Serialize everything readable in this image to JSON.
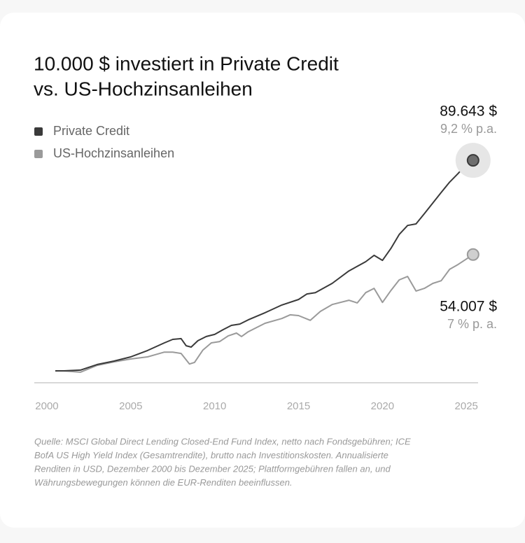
{
  "chart_data": {
    "type": "line",
    "title": [
      "10.000 $ investiert in Private Credit",
      "vs. US-Hochzinsanleihen"
    ],
    "series": [
      {
        "name": "Private Credit",
        "color": "#3a3a3a",
        "end_label": "89.643 $",
        "return_label": "9,2 % p.a.",
        "x": [
          2000.5,
          2001,
          2002,
          2003,
          2004,
          2005,
          2006,
          2007,
          2007.5,
          2008,
          2008.3,
          2008.6,
          2009,
          2009.5,
          2010,
          2010.5,
          2011,
          2011.5,
          2012,
          2013,
          2014,
          2015,
          2015.5,
          2016,
          2017,
          2018,
          2019,
          2019.5,
          2020,
          2020.5,
          2021,
          2021.5,
          2022,
          2022.5,
          2023,
          2023.5,
          2024,
          2024.5,
          2025,
          2025.4
        ],
        "values": [
          10000,
          10000,
          10300,
          12400,
          13700,
          15300,
          17700,
          20600,
          21900,
          22200,
          19500,
          19000,
          21400,
          23000,
          23800,
          25600,
          27200,
          27700,
          29300,
          32000,
          34900,
          37000,
          39100,
          39600,
          43100,
          47800,
          51300,
          53700,
          51800,
          56300,
          61600,
          65000,
          65600,
          69500,
          73500,
          77500,
          81400,
          84600,
          88100,
          89643
        ]
      },
      {
        "name": "US-Hochzinsanleihen",
        "color": "#9a9a9a",
        "end_label": "54.007 $",
        "return_label": "7 % p. a.",
        "x": [
          2000.5,
          2001,
          2002,
          2003,
          2004,
          2005,
          2006,
          2007,
          2007.5,
          2008,
          2008.5,
          2008.8,
          2009.3,
          2009.8,
          2010.3,
          2010.8,
          2011.3,
          2011.6,
          2012,
          2013,
          2014,
          2014.5,
          2015,
          2015.7,
          2016.3,
          2017,
          2018,
          2018.5,
          2019,
          2019.5,
          2020,
          2020.5,
          2021,
          2021.5,
          2022,
          2022.5,
          2023,
          2023.5,
          2024,
          2024.5,
          2025,
          2025.4
        ],
        "values": [
          10000,
          10000,
          9500,
          12100,
          13400,
          14500,
          15300,
          17100,
          17100,
          16600,
          12600,
          13200,
          17900,
          20600,
          21100,
          23200,
          24300,
          23000,
          24800,
          28000,
          29800,
          31200,
          30900,
          29100,
          32500,
          35100,
          36700,
          35700,
          39600,
          41200,
          35900,
          40400,
          44400,
          45700,
          40200,
          41200,
          43100,
          44100,
          48400,
          50200,
          52300,
          54007
        ]
      }
    ],
    "xlim": [
      1999.25,
      2025.7
    ],
    "xticks": [
      2000,
      2005,
      2010,
      2015,
      2020,
      2025
    ],
    "ylim": [
      5500,
      100000
    ],
    "source": [
      "Quelle: MSCI Global Direct Lending Closed-End Fund Index, netto nach Fondsgebühren; ICE",
      "BofA US High Yield Index (Gesamtrendite), brutto nach Investitionskosten. Annualisierte",
      "Renditen in USD, Dezember 2000 bis Dezember 2025; Plattformgebühren fallen an, und",
      "Währungsbewegungen können die EUR-Renditen beeinflussen."
    ]
  }
}
